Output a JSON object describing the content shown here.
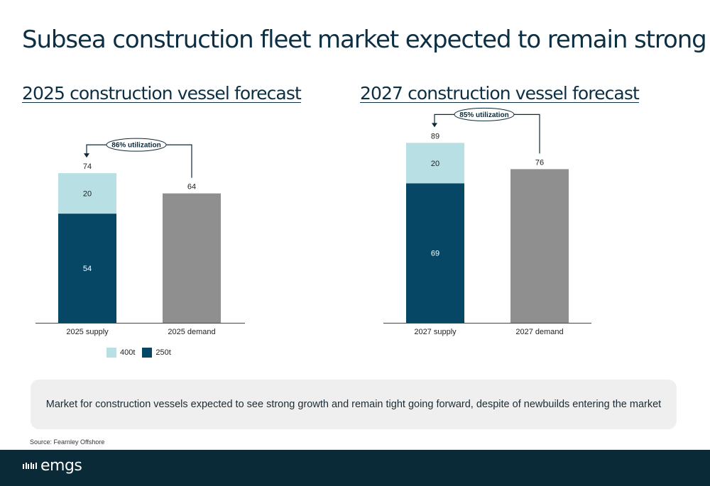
{
  "slide": {
    "title": "Subsea construction fleet market expected to remain strong",
    "callout": "Market for construction vessels expected to see strong growth and remain tight going forward, despite of newbuilds entering the market",
    "source": "Source: Fearnley Offshore",
    "logo_text": "emgs"
  },
  "colors": {
    "s250t": "#064765",
    "s400t": "#b8dfe4",
    "demand": "#8f8f8f",
    "footer": "#0b2a38"
  },
  "chart_data": [
    {
      "type": "bar",
      "title": "2025 construction vessel forecast",
      "categories": [
        "2025 supply",
        "2025 demand"
      ],
      "series": [
        {
          "name": "250t",
          "values": [
            54,
            null
          ]
        },
        {
          "name": "400t",
          "values": [
            20,
            null
          ]
        },
        {
          "name": "",
          "values": [
            null,
            64
          ]
        }
      ],
      "totals": [
        74,
        64
      ],
      "annotation": "86% utilization",
      "legend": [
        "400t",
        "250t"
      ],
      "legend_position": "bottom-left",
      "ylim": [
        0,
        100
      ],
      "grid": false
    },
    {
      "type": "bar",
      "title": "2027 construction vessel forecast",
      "categories": [
        "2027 supply",
        "2027 demand"
      ],
      "series": [
        {
          "name": "250t",
          "values": [
            69,
            null
          ]
        },
        {
          "name": "400t",
          "values": [
            20,
            null
          ]
        },
        {
          "name": "",
          "values": [
            null,
            76
          ]
        }
      ],
      "totals": [
        89,
        76
      ],
      "annotation": "85% utilization",
      "ylim": [
        0,
        100
      ],
      "grid": false
    }
  ]
}
